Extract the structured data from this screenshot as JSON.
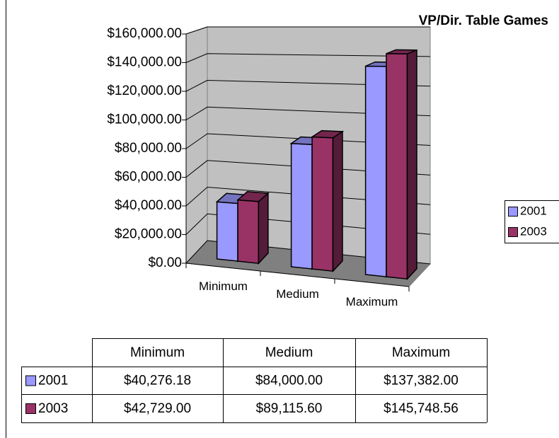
{
  "chart_data": {
    "type": "bar",
    "title": "VP/Dir. Table Games",
    "categories": [
      "Minimum",
      "Medium",
      "Maximum"
    ],
    "series": [
      {
        "name": "2001",
        "color": "#9999ff",
        "values": [
          40276.18,
          84000.0,
          137382.0
        ],
        "value_labels": [
          "$40,276.18",
          "$84,000.00",
          "$137,382.00"
        ]
      },
      {
        "name": "2003",
        "color": "#993366",
        "values": [
          42729.0,
          89115.6,
          145748.56
        ],
        "value_labels": [
          "$42,729.00",
          "$89,115.60",
          "$145,748.56"
        ]
      }
    ],
    "ylim": [
      0,
      160000
    ],
    "yticks": [
      {
        "value": 0,
        "label": "$0.00"
      },
      {
        "value": 20000,
        "label": "$20,000.00"
      },
      {
        "value": 40000,
        "label": "$40,000.00"
      },
      {
        "value": 60000,
        "label": "$60,000.00"
      },
      {
        "value": 80000,
        "label": "$80,000.00"
      },
      {
        "value": 100000,
        "label": "$100,000.00"
      },
      {
        "value": 120000,
        "label": "$120,000.00"
      },
      {
        "value": 140000,
        "label": "$140,000.00"
      },
      {
        "value": 160000,
        "label": "$160,000.00"
      }
    ],
    "grid": true,
    "legend": "right",
    "data_table": true
  }
}
